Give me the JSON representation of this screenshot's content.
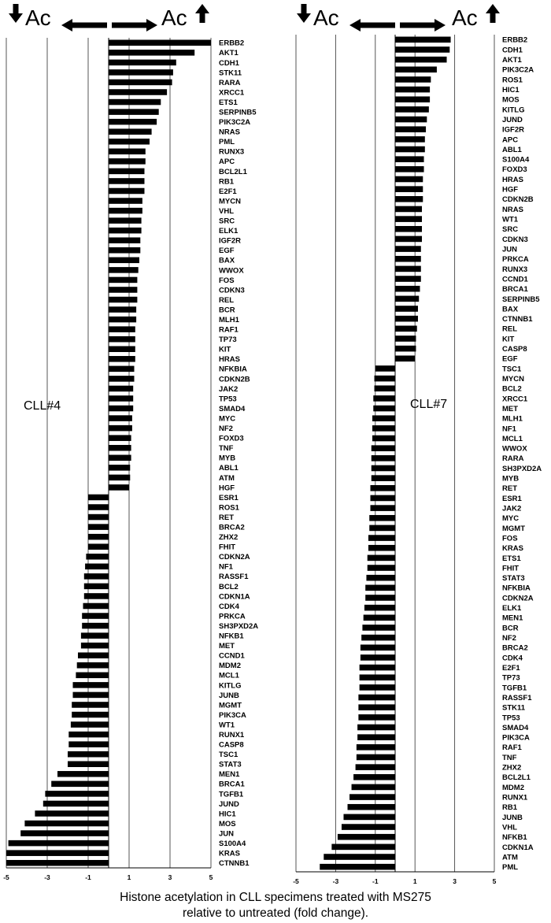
{
  "x_axis_title_line1": "Histone acetylation in CLL specimens treated with MS275",
  "x_axis_title_line2": "relative to untreated (fold change).",
  "header": {
    "left_text": "Ac",
    "right_text": "Ac"
  },
  "chart_data": [
    {
      "type": "bar",
      "orientation": "horizontal",
      "panel_label": "CLL#4",
      "xlim": [
        -5,
        5
      ],
      "xticks": [
        -5,
        -3,
        -1,
        1,
        3,
        5
      ],
      "grid": true,
      "categories": [
        "ERBB2",
        "AKT1",
        "CDH1",
        "STK11",
        "RARA",
        "XRCC1",
        "ETS1",
        "SERPINB5",
        "PIK3C2A",
        "NRAS",
        "PML",
        "RUNX3",
        "APC",
        "BCL2L1",
        "RB1",
        "E2F1",
        "MYCN",
        "VHL",
        "SRC",
        "ELK1",
        "IGF2R",
        "EGF",
        "BAX",
        "WWOX",
        "FOS",
        "CDKN3",
        "REL",
        "BCR",
        "MLH1",
        "RAF1",
        "TP73",
        "KIT",
        "HRAS",
        "NFKBIA",
        "CDKN2B",
        "JAK2",
        "TP53",
        "SMAD4",
        "MYC",
        "NF2",
        "FOXD3",
        "TNF",
        "MYB",
        "ABL1",
        "ATM",
        "HGF",
        "ESR1",
        "ROS1",
        "RET",
        "BRCA2",
        "ZHX2",
        "FHIT",
        "CDKN2A",
        "NF1",
        "RASSF1",
        "BCL2",
        "CDKN1A",
        "CDK4",
        "PRKCA",
        "SH3PXD2A",
        "NFKB1",
        "MET",
        "CCND1",
        "MDM2",
        "MCL1",
        "KITLG",
        "JUNB",
        "MGMT",
        "PIK3CA",
        "WT1",
        "RUNX1",
        "CASP8",
        "TSC1",
        "STAT3",
        "MEN1",
        "BRCA1",
        "TGFB1",
        "JUND",
        "HIC1",
        "MOS",
        "JUN",
        "S100A4",
        "KRAS",
        "CTNNB1"
      ],
      "values": [
        5.0,
        4.2,
        3.3,
        3.15,
        3.1,
        2.85,
        2.55,
        2.45,
        2.35,
        2.1,
        2.0,
        1.8,
        1.8,
        1.75,
        1.75,
        1.75,
        1.65,
        1.65,
        1.6,
        1.6,
        1.55,
        1.55,
        1.5,
        1.45,
        1.4,
        1.4,
        1.4,
        1.35,
        1.35,
        1.3,
        1.3,
        1.3,
        1.3,
        1.25,
        1.25,
        1.2,
        1.2,
        1.2,
        1.15,
        1.15,
        1.1,
        1.1,
        1.1,
        1.05,
        1.05,
        1.0,
        -1.0,
        -1.0,
        -1.0,
        -1.0,
        -1.0,
        -1.0,
        -1.1,
        -1.15,
        -1.2,
        -1.2,
        -1.2,
        -1.25,
        -1.3,
        -1.3,
        -1.35,
        -1.35,
        -1.5,
        -1.55,
        -1.6,
        -1.75,
        -1.75,
        -1.8,
        -1.8,
        -1.85,
        -1.95,
        -1.95,
        -2.0,
        -2.0,
        -2.5,
        -2.8,
        -3.1,
        -3.2,
        -3.6,
        -4.1,
        -4.3,
        -4.9,
        -5.0,
        -5.0
      ]
    },
    {
      "type": "bar",
      "orientation": "horizontal",
      "panel_label": "CLL#7",
      "xlim": [
        -5,
        5
      ],
      "xticks": [
        -5,
        -3,
        -1,
        1,
        3,
        5
      ],
      "grid": true,
      "categories": [
        "ERBB2",
        "CDH1",
        "AKT1",
        "PIK3C2A",
        "ROS1",
        "HIC1",
        "MOS",
        "KITLG",
        "JUND",
        "IGF2R",
        "APC",
        "ABL1",
        "S100A4",
        "FOXD3",
        "HRAS",
        "HGF",
        "CDKN2B",
        "NRAS",
        "WT1",
        "SRC",
        "CDKN3",
        "JUN",
        "PRKCA",
        "RUNX3",
        "CCND1",
        "BRCA1",
        "SERPINB5",
        "BAX",
        "CTNNB1",
        "REL",
        "KIT",
        "CASP8",
        "EGF",
        "TSC1",
        "MYCN",
        "BCL2",
        "XRCC1",
        "MET",
        "MLH1",
        "NF1",
        "MCL1",
        "WWOX",
        "RARA",
        "SH3PXD2A",
        "MYB",
        "RET",
        "ESR1",
        "JAK2",
        "MYC",
        "MGMT",
        "FOS",
        "KRAS",
        "ETS1",
        "FHIT",
        "STAT3",
        "NFKBIA",
        "CDKN2A",
        "ELK1",
        "MEN1",
        "BCR",
        "NF2",
        "BRCA2",
        "CDK4",
        "E2F1",
        "TP73",
        "TGFB1",
        "RASSF1",
        "STK11",
        "TP53",
        "SMAD4",
        "PIK3CA",
        "RAF1",
        "TNF",
        "ZHX2",
        "BCL2L1",
        "MDM2",
        "RUNX1",
        "RB1",
        "JUNB",
        "VHL",
        "NFKB1",
        "CDKN1A",
        "ATM",
        "PML"
      ],
      "values": [
        2.8,
        2.75,
        2.6,
        2.1,
        1.8,
        1.75,
        1.75,
        1.7,
        1.6,
        1.55,
        1.5,
        1.5,
        1.45,
        1.45,
        1.4,
        1.4,
        1.4,
        1.35,
        1.35,
        1.35,
        1.35,
        1.3,
        1.3,
        1.3,
        1.3,
        1.25,
        1.2,
        1.15,
        1.15,
        1.1,
        1.05,
        1.05,
        1.0,
        -1.0,
        -1.05,
        -1.05,
        -1.1,
        -1.1,
        -1.15,
        -1.15,
        -1.15,
        -1.2,
        -1.2,
        -1.2,
        -1.2,
        -1.25,
        -1.25,
        -1.25,
        -1.3,
        -1.3,
        -1.35,
        -1.35,
        -1.4,
        -1.4,
        -1.45,
        -1.5,
        -1.5,
        -1.55,
        -1.6,
        -1.65,
        -1.7,
        -1.75,
        -1.75,
        -1.8,
        -1.8,
        -1.8,
        -1.85,
        -1.85,
        -1.85,
        -1.9,
        -1.9,
        -1.95,
        -1.95,
        -2.0,
        -2.1,
        -2.2,
        -2.3,
        -2.4,
        -2.6,
        -2.7,
        -2.9,
        -3.2,
        -3.6,
        -3.8
      ]
    }
  ]
}
